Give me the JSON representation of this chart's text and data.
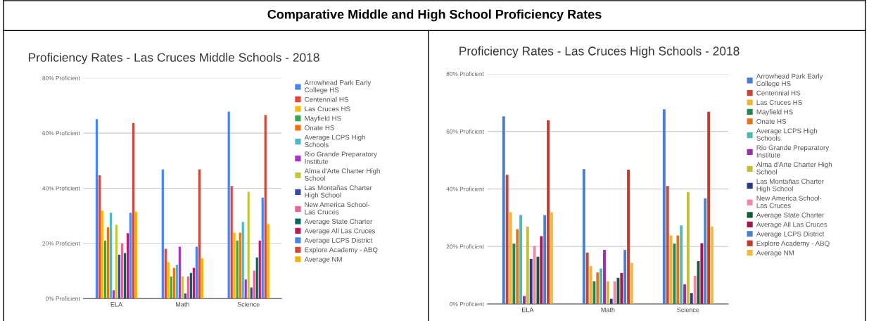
{
  "chart_data": [
    {
      "type": "bar",
      "title": "Proficiency Rates - Las Cruces Middle Schools - 2018",
      "annotations": [
        "Comparative Middle and High School Proficiency Rates"
      ],
      "categories": [
        "ELA",
        "Math",
        "Science"
      ],
      "ylim": [
        0,
        80
      ],
      "yticks": [
        {
          "value": 0,
          "label": "0% Proficient"
        },
        {
          "value": 20,
          "label": "20% Proficient"
        },
        {
          "value": 40,
          "label": "40% Proficient"
        },
        {
          "value": 60,
          "label": "60% Proficient"
        },
        {
          "value": 80,
          "label": "80% Proficient"
        }
      ],
      "grid": "y",
      "legend": "right",
      "series": [
        {
          "name": "Arrowhead Park Early\nCollege HS",
          "color": "#4285f4",
          "values": [
            65.1,
            46.8,
            67.8
          ]
        },
        {
          "name": "Centennial HS",
          "color": "#ea4335",
          "values": [
            44.7,
            18,
            40.8
          ]
        },
        {
          "name": "Las Cruces HS",
          "color": "#fbbc04",
          "values": [
            31.9,
            13.2,
            23.9
          ]
        },
        {
          "name": "Mayfield HS",
          "color": "#34a853",
          "values": [
            21,
            8,
            21
          ]
        },
        {
          "name": "Onate HS",
          "color": "#ff6d01",
          "values": [
            25.9,
            11.1,
            23.9
          ]
        },
        {
          "name": "Average LCPS High\nSchools",
          "color": "#46bdc6",
          "values": [
            31.1,
            12.3,
            27.8
          ]
        },
        {
          "name": "Rio Grande Preparatory\nInstitute",
          "color": "#ab30c4",
          "values": [
            3,
            18.8,
            6.9
          ]
        },
        {
          "name": "Alma d'Arte Charter High\nSchool",
          "color": "#c0ca33",
          "values": [
            26.8,
            8,
            38.7
          ]
        },
        {
          "name": "Las Montañas Charter\nHigh School",
          "color": "#3949ab",
          "values": [
            15.9,
            1.9,
            4
          ]
        },
        {
          "name": "New America School-\nLas Cruces",
          "color": "#f06292",
          "values": [
            20,
            8,
            10.1
          ]
        },
        {
          "name": "Average State Charter",
          "color": "#00695c",
          "values": [
            16.5,
            9.3,
            14.9
          ]
        },
        {
          "name": "Average All Las Cruces",
          "color": "#c2185b",
          "values": [
            23.7,
            11.1,
            21
          ]
        },
        {
          "name": "Average LCPS District",
          "color": "#4285f4",
          "values": [
            31.1,
            18.8,
            36.6
          ]
        },
        {
          "name": "Explore Academy - ABQ",
          "color": "#db4437",
          "values": [
            63.7,
            46.8,
            66.6
          ]
        },
        {
          "name": "Average NM",
          "color": "#f4b400",
          "values": [
            31.5,
            14.6,
            27
          ]
        }
      ]
    },
    {
      "type": "bar",
      "title": "Proficiency Rates - Las Cruces High Schools - 2018",
      "categories": [
        "ELA",
        "Math",
        "Science"
      ],
      "ylim": [
        0,
        80
      ],
      "yticks": [
        {
          "value": 0,
          "label": "0% Proficient"
        },
        {
          "value": 20,
          "label": "20% Proficient"
        },
        {
          "value": 40,
          "label": "40% Proficient"
        },
        {
          "value": 60,
          "label": "60% Proficient"
        },
        {
          "value": 80,
          "label": "80% Proficient"
        }
      ],
      "grid": "y",
      "legend": "right",
      "series": [
        {
          "name": "Arrowhead Park Early\nCollege HS",
          "color": "#4a7fcf",
          "values": [
            65.2,
            46.9,
            67.7
          ]
        },
        {
          "name": "Centennial HS",
          "color": "#c9453b",
          "values": [
            44.9,
            17.9,
            41
          ]
        },
        {
          "name": "Las Cruces HS",
          "color": "#f1b42f",
          "values": [
            31.9,
            13.2,
            23.8
          ]
        },
        {
          "name": "Mayfield HS",
          "color": "#1d8a4e",
          "values": [
            21,
            7.9,
            21
          ]
        },
        {
          "name": "Onate HS",
          "color": "#e8731f",
          "values": [
            26,
            11,
            23.8
          ]
        },
        {
          "name": "Average LCPS High\nSchools",
          "color": "#4fb9b5",
          "values": [
            30.9,
            12.3,
            27.3
          ]
        },
        {
          "name": "Rio Grande Preparatory\nInstitute",
          "color": "#9b2fae",
          "values": [
            2.8,
            18.8,
            6.9
          ]
        },
        {
          "name": "Alma d'Arte Charter High\nSchool",
          "color": "#c4c133",
          "values": [
            26.9,
            7.9,
            38.9
          ]
        },
        {
          "name": "Las Montañas Charter\nHigh School",
          "color": "#2d3a8c",
          "values": [
            15.7,
            1.8,
            3.8
          ]
        },
        {
          "name": "New America School-\nLas Cruces",
          "color": "#ee8aa8",
          "values": [
            20.2,
            7.9,
            9.8
          ]
        },
        {
          "name": "Average State Charter",
          "color": "#125c3a",
          "values": [
            16.4,
            9.1,
            14.9
          ]
        },
        {
          "name": "Average All Las Cruces",
          "color": "#a4154e",
          "values": [
            23.6,
            10.8,
            21.1
          ]
        },
        {
          "name": "Average LCPS District",
          "color": "#4c7fcf",
          "values": [
            30.9,
            18.8,
            36.7
          ]
        },
        {
          "name": "Explore Academy - ABQ",
          "color": "#c23b30",
          "values": [
            63.9,
            46.7,
            66.8
          ]
        },
        {
          "name": "Average NM",
          "color": "#f3bb3c",
          "values": [
            31.9,
            14.3,
            26.9
          ]
        }
      ]
    }
  ]
}
